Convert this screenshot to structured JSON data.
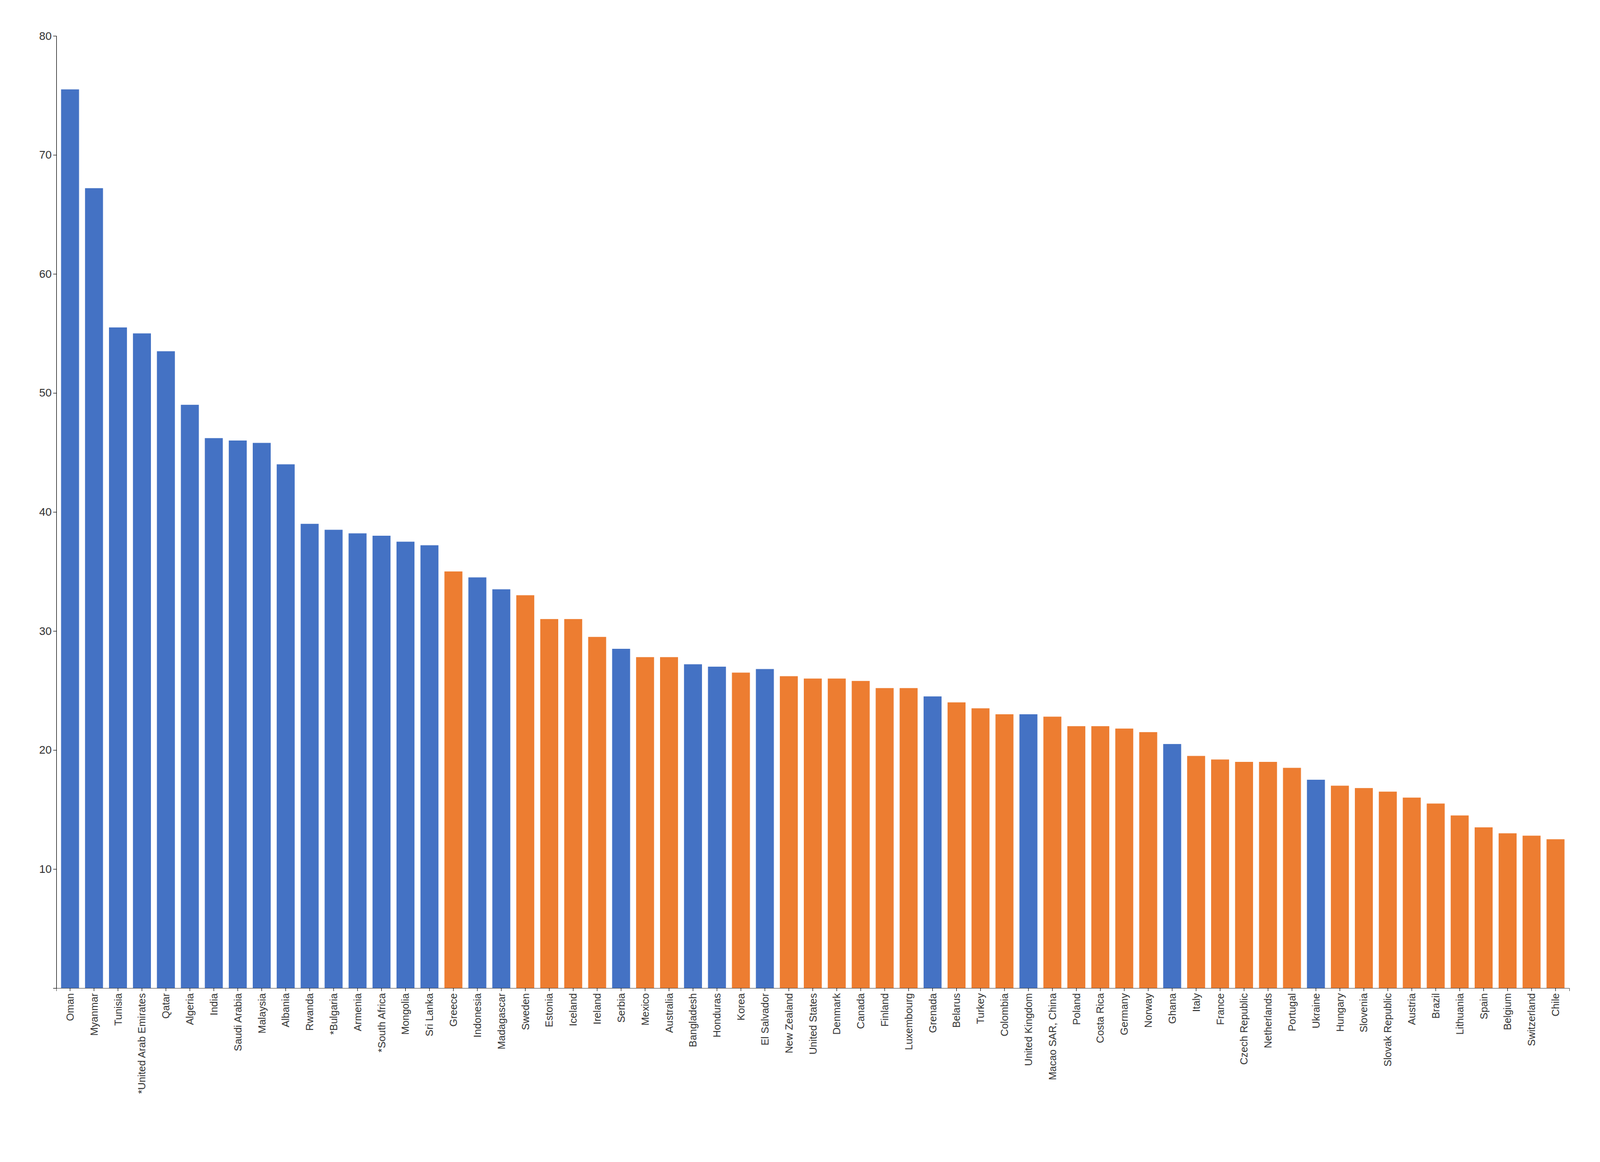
{
  "chart_data": {
    "type": "bar",
    "categories": [
      "Oman",
      "Myanmar",
      "Tunisia",
      "*United Arab Emirates",
      "Qatar",
      "Algeria",
      "India",
      "Saudi Arabia",
      "Malaysia",
      "Albania",
      "Rwanda",
      "*Bulgaria",
      "Armenia",
      "*South Africa",
      "Mongolia",
      "Sri Lanka",
      "Greece",
      "Indonesia",
      "Madagascar",
      "Sweden",
      "Estonia",
      "Iceland",
      "Ireland",
      "Serbia",
      "Mexico",
      "Australia",
      "Bangladesh",
      "Honduras",
      "Korea",
      "El Salvador",
      "New Zealand",
      "United States",
      "Denmark",
      "Canada",
      "Finland",
      "Luxembourg",
      "Grenada",
      "Belarus",
      "Turkey",
      "Colombia",
      "United Kingdom",
      "Macao SAR, China",
      "Poland",
      "Costa Rica",
      "Germany",
      "Norway",
      "Ghana",
      "Italy",
      "France",
      "Czech Republic",
      "Netherlands",
      "Portugal",
      "Ukraine",
      "Hungary",
      "Slovenia",
      "Slovak Republic",
      "Austria",
      "Brazil",
      "Lithuania",
      "Spain",
      "Belgium",
      "Switzerland",
      "Chile"
    ],
    "values": [
      75.5,
      67.2,
      55.5,
      55.0,
      53.5,
      49.0,
      46.2,
      46.0,
      45.8,
      44.0,
      39.0,
      38.5,
      38.2,
      38.0,
      37.5,
      37.2,
      35.0,
      34.5,
      33.5,
      33.0,
      31.0,
      31.0,
      29.5,
      28.5,
      27.8,
      27.8,
      27.2,
      27.0,
      26.5,
      26.8,
      26.2,
      26.0,
      26.0,
      25.8,
      25.2,
      25.2,
      24.5,
      24.0,
      23.5,
      23.0,
      23.0,
      22.8,
      22.0,
      22.0,
      21.8,
      21.5,
      20.5,
      19.5,
      19.2,
      19.0,
      19.0,
      18.5,
      17.5,
      17.0,
      16.8,
      16.5,
      16.0,
      15.5,
      14.5,
      13.5,
      13.0,
      12.8,
      12.5
    ],
    "colors": [
      "#4472C4",
      "#4472C4",
      "#4472C4",
      "#4472C4",
      "#4472C4",
      "#4472C4",
      "#4472C4",
      "#4472C4",
      "#4472C4",
      "#4472C4",
      "#4472C4",
      "#4472C4",
      "#4472C4",
      "#4472C4",
      "#4472C4",
      "#4472C4",
      "#ED7D31",
      "#4472C4",
      "#4472C4",
      "#ED7D31",
      "#ED7D31",
      "#ED7D31",
      "#ED7D31",
      "#4472C4",
      "#ED7D31",
      "#ED7D31",
      "#4472C4",
      "#4472C4",
      "#ED7D31",
      "#4472C4",
      "#ED7D31",
      "#ED7D31",
      "#ED7D31",
      "#ED7D31",
      "#ED7D31",
      "#ED7D31",
      "#4472C4",
      "#ED7D31",
      "#ED7D31",
      "#ED7D31",
      "#4472C4",
      "#ED7D31",
      "#ED7D31",
      "#ED7D31",
      "#ED7D31",
      "#ED7D31",
      "#4472C4",
      "#ED7D31",
      "#ED7D31",
      "#ED7D31",
      "#ED7D31",
      "#ED7D31",
      "#4472C4",
      "#ED7D31",
      "#ED7D31",
      "#ED7D31",
      "#ED7D31",
      "#ED7D31",
      "#ED7D31",
      "#ED7D31",
      "#ED7D31",
      "#ED7D31",
      "#ED7D31"
    ],
    "ylim": [
      0,
      80
    ],
    "yticks": [
      10,
      20,
      30,
      40,
      50,
      60,
      70,
      80
    ],
    "grid": false
  }
}
